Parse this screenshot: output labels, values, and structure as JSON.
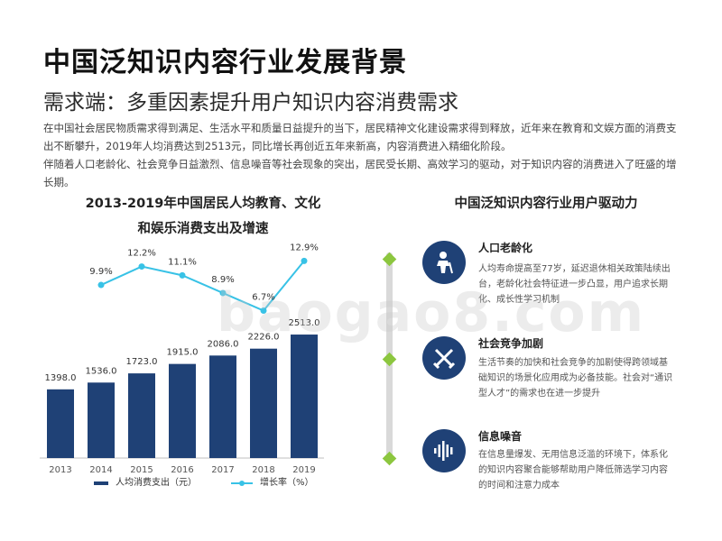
{
  "header": {
    "title": "中国泛知识内容行业发展背景",
    "subtitle": "需求端：多重因素提升用户知识内容消费需求"
  },
  "intro": {
    "p1": "在中国社会居民物质需求得到满足、生活水平和质量日益提升的当下，居民精神文化建设需求得到释放，近年来在教育和文娱方面的消费支出不断攀升，2019年人均消费达到2513元，同比增长再创近五年来新高，内容消费进入精细化阶段。",
    "p2": "伴随着人口老龄化、社会竞争日益激烈、信息噪音等社会现象的突出，居民受长期、高效学习的驱动，对于知识内容的消费进入了旺盛的增长期。"
  },
  "chart_title": {
    "line1": "2013-2019年中国居民人均教育、文化",
    "line2": "和娱乐消费支出及增速"
  },
  "chart_data": {
    "type": "bar",
    "categories": [
      "2013",
      "2014",
      "2015",
      "2016",
      "2017",
      "2018",
      "2019"
    ],
    "series": [
      {
        "name": "人均消费支出（元）",
        "type": "bar",
        "values": [
          1398.0,
          1536.0,
          1723.0,
          1915.0,
          2086.0,
          2226.0,
          2513.0
        ],
        "labels": [
          "1398.0",
          "1536.0",
          "1723.0",
          "1915.0",
          "2086.0",
          "2226.0",
          "2513.0"
        ],
        "color": "#1f4176"
      },
      {
        "name": "增长率（%）",
        "type": "line",
        "values": [
          null,
          9.9,
          12.2,
          11.1,
          8.9,
          6.7,
          12.9
        ],
        "labels": [
          "",
          "9.9%",
          "12.2%",
          "11.1%",
          "8.9%",
          "6.7%",
          "12.9%"
        ],
        "color": "#38c2e6"
      }
    ],
    "legend_position": "bottom",
    "grid": false
  },
  "right_panel": {
    "title": "中国泛知识内容行业用户驱动力",
    "drivers": [
      {
        "name": "人口老龄化",
        "icon": "elderly-person-icon",
        "desc": "人均寿命提高至77岁，延迟退休相关政策陆续出台，老龄化社会特征进一步凸显，用户追求长期化、成长性学习机制"
      },
      {
        "name": "社会竞争加剧",
        "icon": "crossed-swords-icon",
        "desc": "生活节奏的加快和社会竞争的加剧使得跨领域基础知识的场景化应用成为必备技能。社会对“通识型人才”的需求也在进一步提升"
      },
      {
        "name": "信息噪音",
        "icon": "sound-wave-icon",
        "desc": "在信息量爆发、无用信息泛滥的环境下，体系化的知识内容聚合能够帮助用户降低筛选学习内容的时间和注意力成本"
      }
    ]
  },
  "colors": {
    "accent": "#1f4176",
    "line": "#38c2e6",
    "marker": "#8cc63f"
  },
  "watermark": "baogao8.com"
}
